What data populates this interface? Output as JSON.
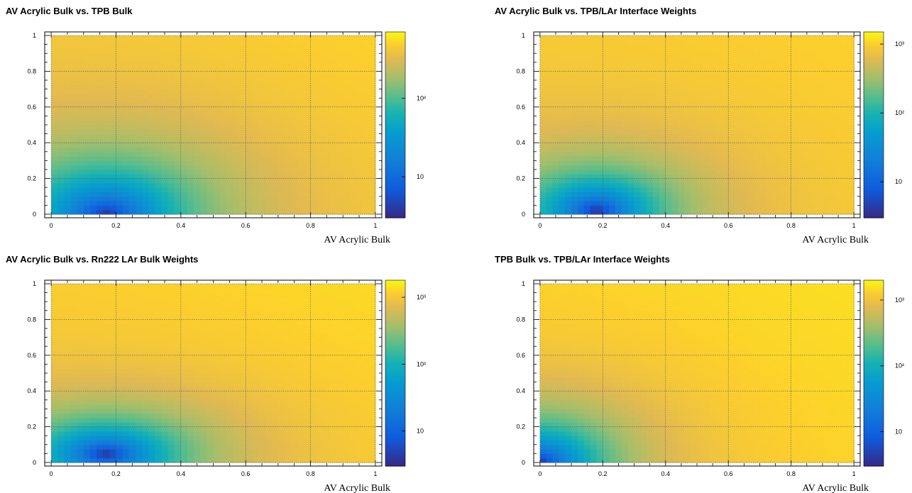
{
  "chart_data": [
    {
      "type": "heatmap",
      "title": "AV Acrylic Bulk vs. TPB Bulk",
      "xlabel": "AV Acrylic Bulk",
      "ylabel": "",
      "xlim": [
        -0.02,
        1.02
      ],
      "ylim": [
        -0.02,
        1.02
      ],
      "x_ticks": [
        "0",
        "0.2",
        "0.4",
        "0.6",
        "0.8",
        "1"
      ],
      "y_ticks": [
        "0",
        "0.2",
        "0.4",
        "0.6",
        "0.8",
        "1"
      ],
      "z_scale": "log",
      "z_range": [
        3,
        700
      ],
      "z_ticks": [
        "10",
        "10²"
      ],
      "grid": true,
      "model": {
        "cx": 0.17,
        "cy": 0.0,
        "sx": 0.24,
        "sy": 0.26,
        "zmin": 3,
        "zmax": 500,
        "tilt": 0.35,
        "floor": 0.0
      }
    },
    {
      "type": "heatmap",
      "title": "AV Acrylic Bulk vs. TPB/LAr Interface Weights",
      "xlabel": "AV Acrylic Bulk",
      "ylabel": "",
      "xlim": [
        -0.02,
        1.02
      ],
      "ylim": [
        -0.02,
        1.02
      ],
      "x_ticks": [
        "0",
        "0.2",
        "0.4",
        "0.6",
        "0.8",
        "1"
      ],
      "y_ticks": [
        "0",
        "0.2",
        "0.4",
        "0.6",
        "0.8",
        "1"
      ],
      "z_scale": "log",
      "z_range": [
        3,
        1500
      ],
      "z_ticks": [
        "10",
        "10²",
        "10³"
      ],
      "grid": true,
      "model": {
        "cx": 0.18,
        "cy": 0.02,
        "sx": 0.2,
        "sy": 0.2,
        "zmin": 3,
        "zmax": 1000,
        "tilt": 0.25,
        "floor": 0.0
      }
    },
    {
      "type": "heatmap",
      "title": "AV Acrylic Bulk vs. Rn222 LAr Bulk Weights",
      "xlabel": "AV Acrylic Bulk",
      "ylabel": "",
      "xlim": [
        -0.02,
        1.02
      ],
      "ylim": [
        -0.02,
        1.02
      ],
      "x_ticks": [
        "0",
        "0.2",
        "0.4",
        "0.6",
        "0.8",
        "1"
      ],
      "y_ticks": [
        "0",
        "0.2",
        "0.4",
        "0.6",
        "0.8",
        "1"
      ],
      "z_scale": "log",
      "z_range": [
        3,
        1800
      ],
      "z_ticks": [
        "10",
        "10²",
        "10³"
      ],
      "grid": true,
      "model": {
        "cx": 0.17,
        "cy": 0.05,
        "sx": 0.22,
        "sy": 0.18,
        "zmin": 3,
        "zmax": 1300,
        "tilt": 0.3,
        "floor": 0.0
      }
    },
    {
      "type": "heatmap",
      "title": "TPB Bulk vs. TPB/LAr Interface Weights",
      "xlabel": "AV Acrylic Bulk",
      "ylabel": "",
      "xlim": [
        -0.02,
        1.02
      ],
      "ylim": [
        -0.02,
        1.02
      ],
      "x_ticks": [
        "0",
        "0.2",
        "0.4",
        "0.6",
        "0.8",
        "1"
      ],
      "y_ticks": [
        "0",
        "0.2",
        "0.4",
        "0.6",
        "0.8",
        "1"
      ],
      "z_scale": "log",
      "z_range": [
        3,
        2000
      ],
      "z_ticks": [
        "10",
        "10²",
        "10³"
      ],
      "grid": true,
      "model": {
        "cx": 0.0,
        "cy": 0.0,
        "sx": 0.2,
        "sy": 0.22,
        "zmin": 3,
        "zmax": 1500,
        "tilt": 0.2,
        "floor": 0.0
      }
    }
  ]
}
